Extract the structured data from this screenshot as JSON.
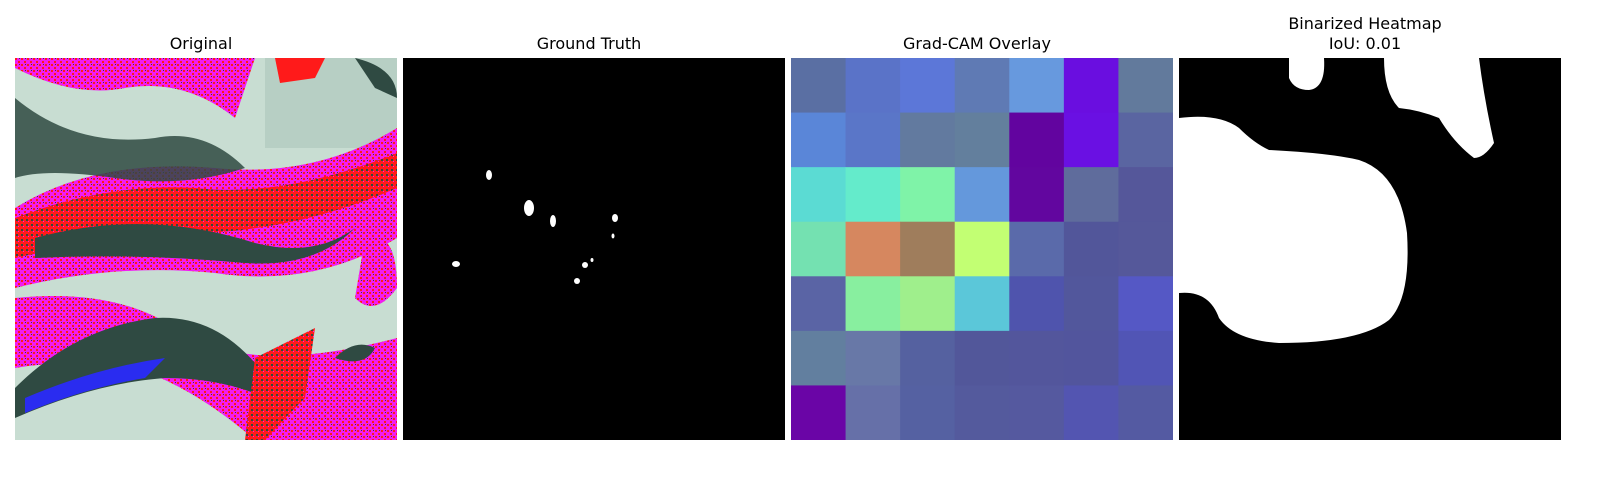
{
  "figure": {
    "panels": [
      {
        "title": "Original"
      },
      {
        "title": "Ground Truth"
      },
      {
        "title": "Grad-CAM Overlay"
      },
      {
        "title_line1": "Binarized Heatmap",
        "title_line2": "IoU: 0.01"
      }
    ],
    "gradcam_grid": {
      "rows": 7,
      "cols": 7,
      "colors": [
        [
          "#5a6fa3",
          "#5a73c8",
          "#5c77d8",
          "#5f7ab4",
          "#6799de",
          "#6a0ee0",
          "#627a9c"
        ],
        [
          "#5a86d8",
          "#5a76c8",
          "#627a9f",
          "#637f9d",
          "#62049f",
          "#6a10e3",
          "#5a65a1"
        ],
        [
          "#5bdbd3",
          "#64ebcb",
          "#7ff3a8",
          "#6498dc",
          "#62069f",
          "#5f6c9c",
          "#55579a"
        ],
        [
          "#74e1b1",
          "#d6875f",
          "#9f7d5c",
          "#c2ff73",
          "#5a6aaa",
          "#52569a",
          "#55589a"
        ],
        [
          "#5a64a5",
          "#88ef9f",
          "#9fef8c",
          "#5bc7d9",
          "#4f54ad",
          "#52579c",
          "#5558c5"
        ],
        [
          "#627f9f",
          "#6878a7",
          "#5561a0",
          "#52579a",
          "#53569c",
          "#52559d",
          "#5155b5"
        ],
        [
          "#6a05a6",
          "#6670a8",
          "#5561a2",
          "#545a9d",
          "#55599f",
          "#5355b1",
          "#545aa2"
        ]
      ]
    },
    "colors": {
      "mask_background": "#000000",
      "mask_foreground": "#ffffff",
      "leaf_magenta": "#f21cf0",
      "leaf_red": "#ff1a1a",
      "leaf_dark": "#2f4a42",
      "leaf_pale": "#c8ddd2",
      "leaf_blue": "#2a2cf0"
    }
  }
}
